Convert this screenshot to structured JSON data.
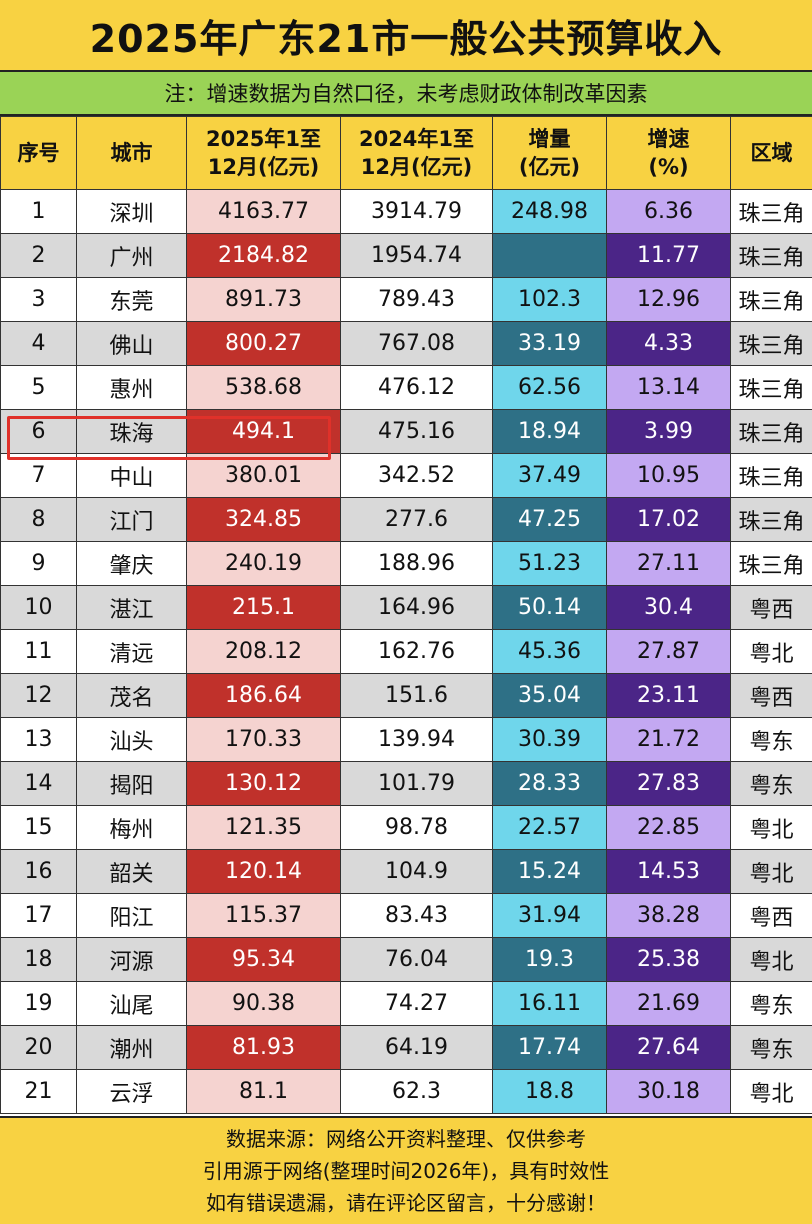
{
  "title": "2025年广东21市一般公共预算收入",
  "note": "注：增速数据为自然口径，未考虑财政体制改革因素",
  "headers": {
    "rank": "序号",
    "city": "城市",
    "y2025_l1": "2025年1至",
    "y2025_l2": "12月(亿元)",
    "y2024_l1": "2024年1至",
    "y2024_l2": "12月(亿元)",
    "inc_l1": "增量",
    "inc_l2": "(亿元)",
    "rate_l1": "增速",
    "rate_l2": "(%)",
    "region": "区域"
  },
  "rows": [
    {
      "rank": "1",
      "city": "深圳",
      "y2025": "4163.77",
      "y2024": "3914.79",
      "inc": "248.98",
      "rate": "6.36",
      "region": "珠三角"
    },
    {
      "rank": "2",
      "city": "广州",
      "y2025": "2184.82",
      "y2024": "1954.74",
      "inc": "",
      "rate": "11.77",
      "region": "珠三角"
    },
    {
      "rank": "3",
      "city": "东莞",
      "y2025": "891.73",
      "y2024": "789.43",
      "inc": "102.3",
      "rate": "12.96",
      "region": "珠三角"
    },
    {
      "rank": "4",
      "city": "佛山",
      "y2025": "800.27",
      "y2024": "767.08",
      "inc": "33.19",
      "rate": "4.33",
      "region": "珠三角"
    },
    {
      "rank": "5",
      "city": "惠州",
      "y2025": "538.68",
      "y2024": "476.12",
      "inc": "62.56",
      "rate": "13.14",
      "region": "珠三角"
    },
    {
      "rank": "6",
      "city": "珠海",
      "y2025": "494.1",
      "y2024": "475.16",
      "inc": "18.94",
      "rate": "3.99",
      "region": "珠三角"
    },
    {
      "rank": "7",
      "city": "中山",
      "y2025": "380.01",
      "y2024": "342.52",
      "inc": "37.49",
      "rate": "10.95",
      "region": "珠三角"
    },
    {
      "rank": "8",
      "city": "江门",
      "y2025": "324.85",
      "y2024": "277.6",
      "inc": "47.25",
      "rate": "17.02",
      "region": "珠三角"
    },
    {
      "rank": "9",
      "city": "肇庆",
      "y2025": "240.19",
      "y2024": "188.96",
      "inc": "51.23",
      "rate": "27.11",
      "region": "珠三角"
    },
    {
      "rank": "10",
      "city": "湛江",
      "y2025": "215.1",
      "y2024": "164.96",
      "inc": "50.14",
      "rate": "30.4",
      "region": "粤西"
    },
    {
      "rank": "11",
      "city": "清远",
      "y2025": "208.12",
      "y2024": "162.76",
      "inc": "45.36",
      "rate": "27.87",
      "region": "粤北"
    },
    {
      "rank": "12",
      "city": "茂名",
      "y2025": "186.64",
      "y2024": "151.6",
      "inc": "35.04",
      "rate": "23.11",
      "region": "粤西"
    },
    {
      "rank": "13",
      "city": "汕头",
      "y2025": "170.33",
      "y2024": "139.94",
      "inc": "30.39",
      "rate": "21.72",
      "region": "粤东"
    },
    {
      "rank": "14",
      "city": "揭阳",
      "y2025": "130.12",
      "y2024": "101.79",
      "inc": "28.33",
      "rate": "27.83",
      "region": "粤东"
    },
    {
      "rank": "15",
      "city": "梅州",
      "y2025": "121.35",
      "y2024": "98.78",
      "inc": "22.57",
      "rate": "22.85",
      "region": "粤北"
    },
    {
      "rank": "16",
      "city": "韶关",
      "y2025": "120.14",
      "y2024": "104.9",
      "inc": "15.24",
      "rate": "14.53",
      "region": "粤北"
    },
    {
      "rank": "17",
      "city": "阳江",
      "y2025": "115.37",
      "y2024": "83.43",
      "inc": "31.94",
      "rate": "38.28",
      "region": "粤西"
    },
    {
      "rank": "18",
      "city": "河源",
      "y2025": "95.34",
      "y2024": "76.04",
      "inc": "19.3",
      "rate": "25.38",
      "region": "粤北"
    },
    {
      "rank": "19",
      "city": "汕尾",
      "y2025": "90.38",
      "y2024": "74.27",
      "inc": "16.11",
      "rate": "21.69",
      "region": "粤东"
    },
    {
      "rank": "20",
      "city": "潮州",
      "y2025": "81.93",
      "y2024": "64.19",
      "inc": "17.74",
      "rate": "27.64",
      "region": "粤东"
    },
    {
      "rank": "21",
      "city": "云浮",
      "y2025": "81.1",
      "y2024": "62.3",
      "inc": "18.8",
      "rate": "30.18",
      "region": "粤北"
    }
  ],
  "footer": {
    "line1": "数据来源：网络公开资料整理、仅供参考",
    "line2": "引用源于网络(整理时间2026年)，具有时效性",
    "line3": "如有错误遗漏，请在评论区留言，十分感谢！"
  },
  "colors": {
    "header_yellow": "#f8d242",
    "note_green": "#9ad356",
    "revenue_light": "#f5d3d0",
    "revenue_dark": "#c0312b",
    "increment_light": "#6fd6eb",
    "increment_dark": "#2e7086",
    "rate_light": "#c3a8f2",
    "rate_dark": "#4b2587",
    "highlight_red": "#e0312a"
  }
}
